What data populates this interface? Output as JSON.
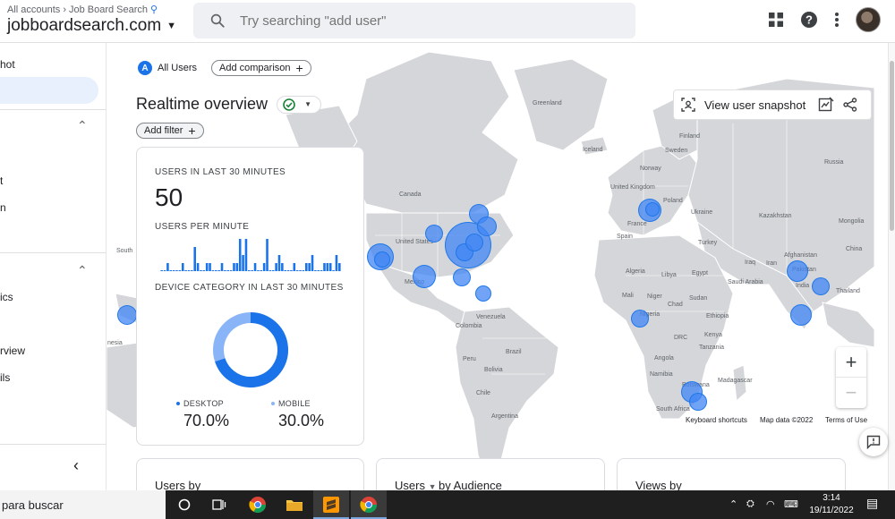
{
  "colors": {
    "accent": "#1a73e8",
    "bubble": "#4285f4",
    "donut_desktop": "#1a73e8",
    "donut_mobile": "#8ab4f8",
    "map_land": "#d4d6d9",
    "map_water": "#ffffff"
  },
  "topbar": {
    "breadcrumb_all": "All accounts",
    "breadcrumb_property": "Job Board Search",
    "account_name": "jobboardsearch.com",
    "search_placeholder": "Try searching \"add user\"",
    "icons": [
      "apps-grid-icon",
      "help-icon",
      "more-vert-icon",
      "avatar"
    ]
  },
  "sidebar": {
    "items": [
      "hot",
      "t",
      "n",
      "ics",
      "rview",
      "ils"
    ]
  },
  "segment": {
    "badge": "A",
    "label": "All Users",
    "add_comparison": "Add comparison"
  },
  "page": {
    "title": "Realtime overview",
    "add_filter": "Add filter",
    "snapshot_label": "View user snapshot"
  },
  "card": {
    "users_30_label": "USERS IN LAST 30 MINUTES",
    "users_30_value": "50",
    "per_minute_label": "USERS PER MINUTE",
    "per_minute_values": [
      0,
      0,
      1,
      0,
      0,
      0,
      0,
      1,
      0,
      0,
      0,
      3,
      1,
      0,
      0,
      1,
      1,
      0,
      0,
      0,
      1,
      0,
      0,
      0,
      1,
      1,
      4,
      2,
      4,
      0,
      0,
      1,
      0,
      0,
      1,
      4,
      0,
      0,
      1,
      2,
      1,
      0,
      0,
      0,
      1,
      0,
      0,
      0,
      1,
      1,
      2,
      0,
      0,
      0,
      1,
      1,
      1,
      0,
      2,
      1
    ],
    "device_label": "DEVICE CATEGORY IN LAST 30 MINUTES",
    "desktop_label": "DESKTOP",
    "desktop_value": "70.0%",
    "mobile_label": "MOBILE",
    "mobile_value": "30.0%",
    "device_shares": {
      "desktop": 0.7,
      "mobile": 0.3
    }
  },
  "map": {
    "labels": [
      "Greenland",
      "Finland",
      "Iceland",
      "Sweden",
      "Norway",
      "Russia",
      "Canada",
      "United Kingdom",
      "Poland",
      "Ukraine",
      "Kazakhstan",
      "Mongolia",
      "France",
      "Spain",
      "Turkey",
      "China",
      "Iraq",
      "Iran",
      "Afghanistan",
      "Pakistan",
      "India",
      "Thailand",
      "Algeria",
      "Libya",
      "Egypt",
      "Saudi Arabia",
      "Mali",
      "Niger",
      "Chad",
      "Sudan",
      "Ethiopia",
      "Nigeria",
      "DRC",
      "Kenya",
      "Tanzania",
      "Angola",
      "Namibia",
      "Botswana",
      "Madagascar",
      "South Africa",
      "United States",
      "Mexico",
      "Venezuela",
      "Colombia",
      "Peru",
      "Brazil",
      "Bolivia",
      "Chile",
      "Argentina",
      "South",
      "nesia"
    ],
    "footer_shortcuts": "Keyboard shortcuts",
    "footer_data": "Map data ©2022",
    "footer_terms": "Terms of Use",
    "zoom_in": "+",
    "zoom_out": "−"
  },
  "bottom_cards": {
    "card1": "Users by",
    "card2_prefix": "Users",
    "card2_suffix": "by Audience",
    "card3": "Views by"
  },
  "taskbar": {
    "search_text": "para buscar",
    "time": "3:14",
    "date": "19/11/2022"
  }
}
